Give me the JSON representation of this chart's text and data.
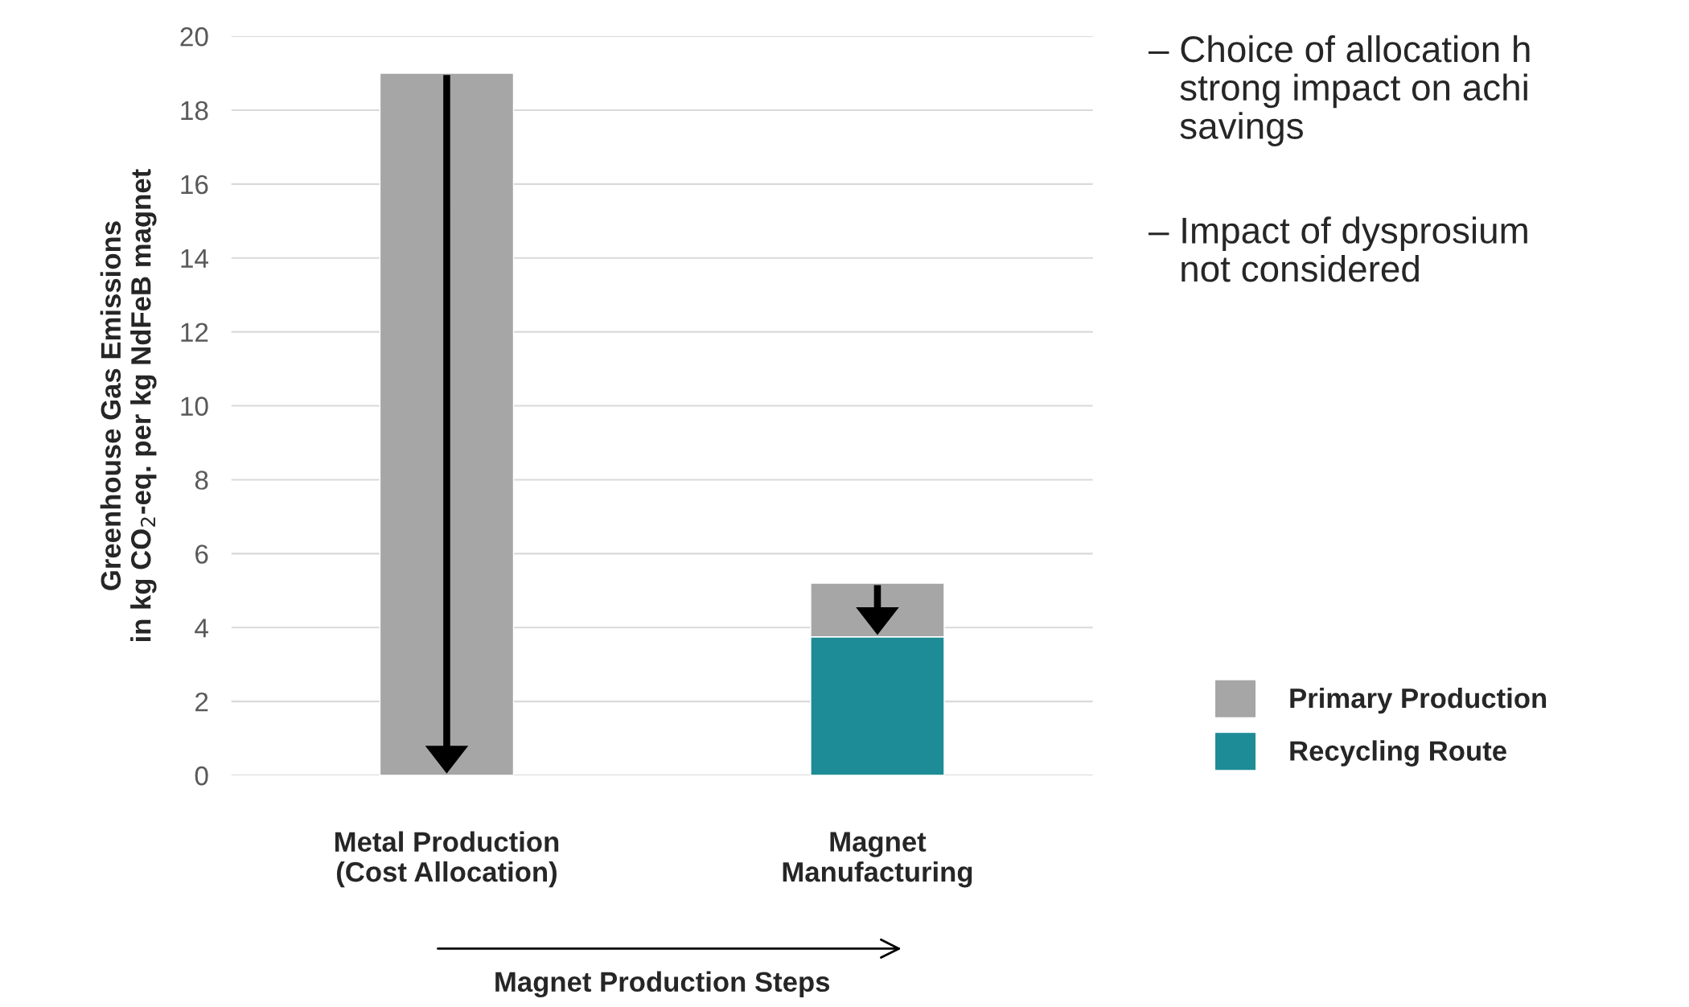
{
  "chart_data": {
    "type": "bar",
    "stacked": true,
    "categories": [
      "Metal Production\n(Cost Allocation)",
      "Magnet\nManufacturing"
    ],
    "series": [
      {
        "name": "Recycling Route",
        "color": "#1e8c96",
        "values": [
          0,
          3.75
        ]
      },
      {
        "name": "Primary Production",
        "color": "#a6a6a6",
        "values": [
          19.0,
          1.45
        ]
      }
    ],
    "xlabel": "Magnet Production Steps",
    "ylabel": "Greenhouse Gas Emissions\nin kg CO$_{2}$-eq. per kg NdFeB magnet",
    "ylim": [
      0,
      20
    ],
    "yticks": [
      0,
      2,
      4,
      6,
      8,
      10,
      12,
      14,
      16,
      18,
      20
    ],
    "grid": "y",
    "legend": "right",
    "annotations": [
      "– Choice of allocation h\n   strong impact on achi\n   savings",
      "– Impact of dysprosium\n   not considered"
    ]
  }
}
